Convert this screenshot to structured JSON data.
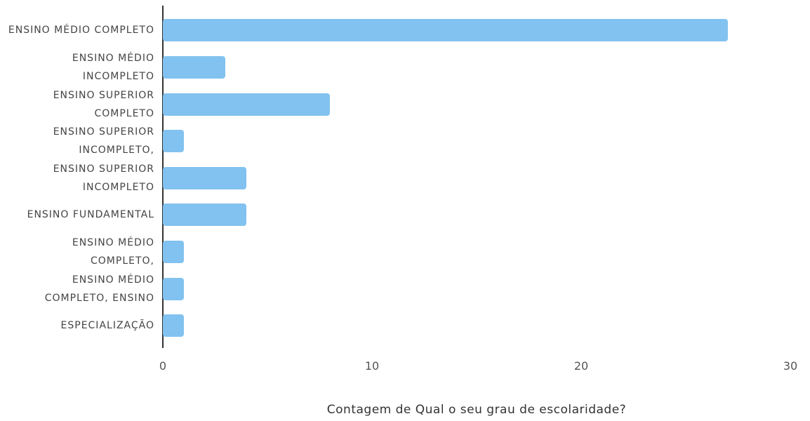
{
  "chart_data": {
    "type": "bar",
    "orientation": "horizontal",
    "x_label": "Contagem de Qual o seu grau de escolaridade?",
    "categories": [
      "ENSINO MÉDIO COMPLETO",
      "ENSINO MÉDIO INCOMPLETO",
      "ENSINO SUPERIOR COMPLETO",
      "ENSINO SUPERIOR INCOMPLETO,",
      "ENSINO SUPERIOR INCOMPLETO",
      "ENSINO FUNDAMENTAL",
      "ENSINO MÉDIO COMPLETO,",
      "ENSINO MÉDIO COMPLETO, ENSINO",
      "ESPECIALIZAÇÃO"
    ],
    "values": [
      27,
      3,
      8,
      1,
      4,
      4,
      1,
      1,
      1
    ],
    "color": "#82c2f0",
    "xlim": [
      0,
      30
    ],
    "xticks": [
      0,
      10,
      20,
      30
    ],
    "grid": false
  }
}
